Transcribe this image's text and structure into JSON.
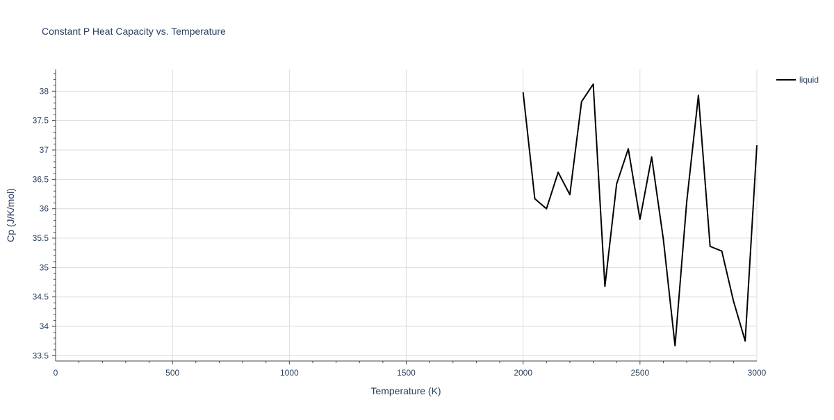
{
  "chart_data": {
    "type": "line",
    "title": "Constant P Heat Capacity vs. Temperature",
    "xlabel": "Temperature (K)",
    "ylabel": "Cp (J/K/mol)",
    "xlim": [
      0,
      3000
    ],
    "ylim": [
      33.41,
      38.37
    ],
    "grid": true,
    "legend_position": "top-right",
    "x_ticks": [
      0,
      500,
      1000,
      1500,
      2000,
      2500,
      3000
    ],
    "x_tick_labels": [
      "0",
      "500",
      "1000",
      "1500",
      "2000",
      "2500",
      "3000"
    ],
    "y_ticks": [
      33.5,
      34,
      34.5,
      35,
      35.5,
      36,
      36.5,
      37,
      37.5,
      38
    ],
    "y_tick_labels": [
      "33.5",
      "34",
      "34.5",
      "35",
      "35.5",
      "36",
      "36.5",
      "37",
      "37.5",
      "38"
    ],
    "series": [
      {
        "name": "liquid",
        "color": "#000000",
        "x": [
          2000,
          2050,
          2100,
          2150,
          2200,
          2250,
          2300,
          2350,
          2400,
          2450,
          2500,
          2550,
          2600,
          2650,
          2700,
          2750,
          2800,
          2850,
          2900,
          2950,
          3000
        ],
        "y": [
          37.98,
          36.17,
          36.0,
          36.62,
          36.24,
          37.82,
          38.12,
          34.68,
          36.42,
          37.02,
          35.82,
          36.88,
          35.48,
          33.67,
          36.12,
          37.93,
          35.36,
          35.28,
          34.43,
          33.75,
          37.08
        ]
      }
    ]
  }
}
